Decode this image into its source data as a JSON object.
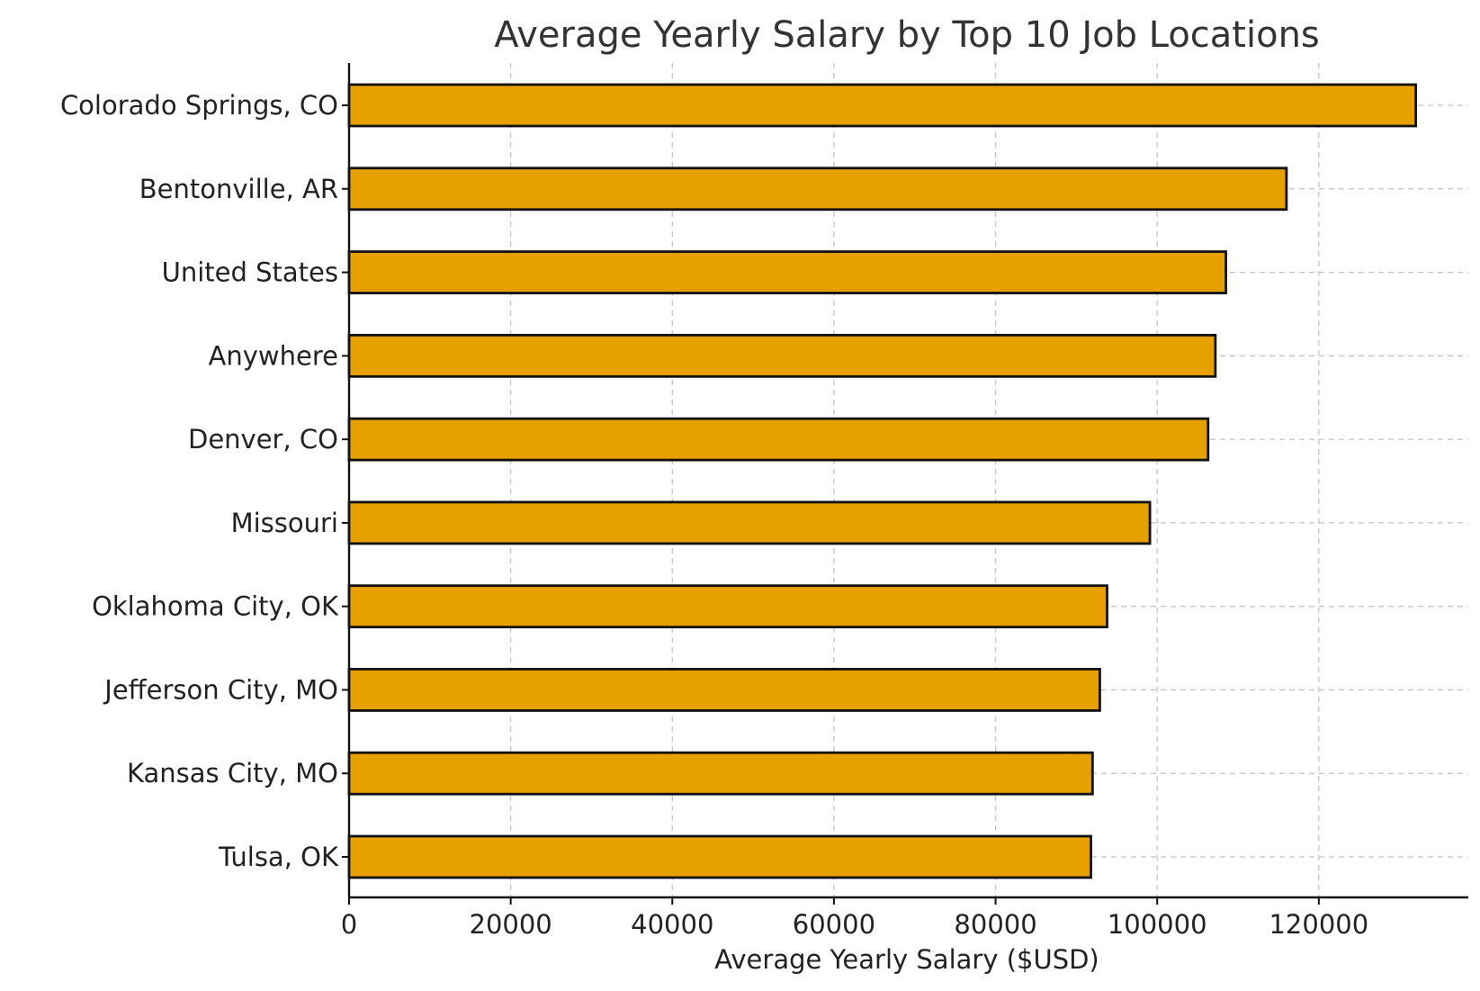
{
  "chart_data": {
    "type": "bar",
    "orientation": "horizontal",
    "title": "Average Yearly Salary by Top 10 Job Locations",
    "xlabel": "Average Yearly Salary ($USD)",
    "ylabel": "",
    "categories": [
      "Colorado Springs, CO",
      "Bentonville, AR",
      "United States",
      "Anywhere",
      "Denver, CO",
      "Missouri",
      "Oklahoma City, OK",
      "Jefferson City, MO",
      "Kansas City, MO",
      "Tulsa, OK"
    ],
    "values": [
      132000,
      116000,
      108500,
      107200,
      106300,
      99100,
      93800,
      92900,
      92000,
      91800
    ],
    "xlim": [
      0,
      138500
    ],
    "xticks": [
      "0",
      "20000",
      "40000",
      "60000",
      "80000",
      "100000",
      "120000"
    ],
    "grid": true,
    "bar_color": "#E6A000",
    "edge_color": "#111111"
  }
}
